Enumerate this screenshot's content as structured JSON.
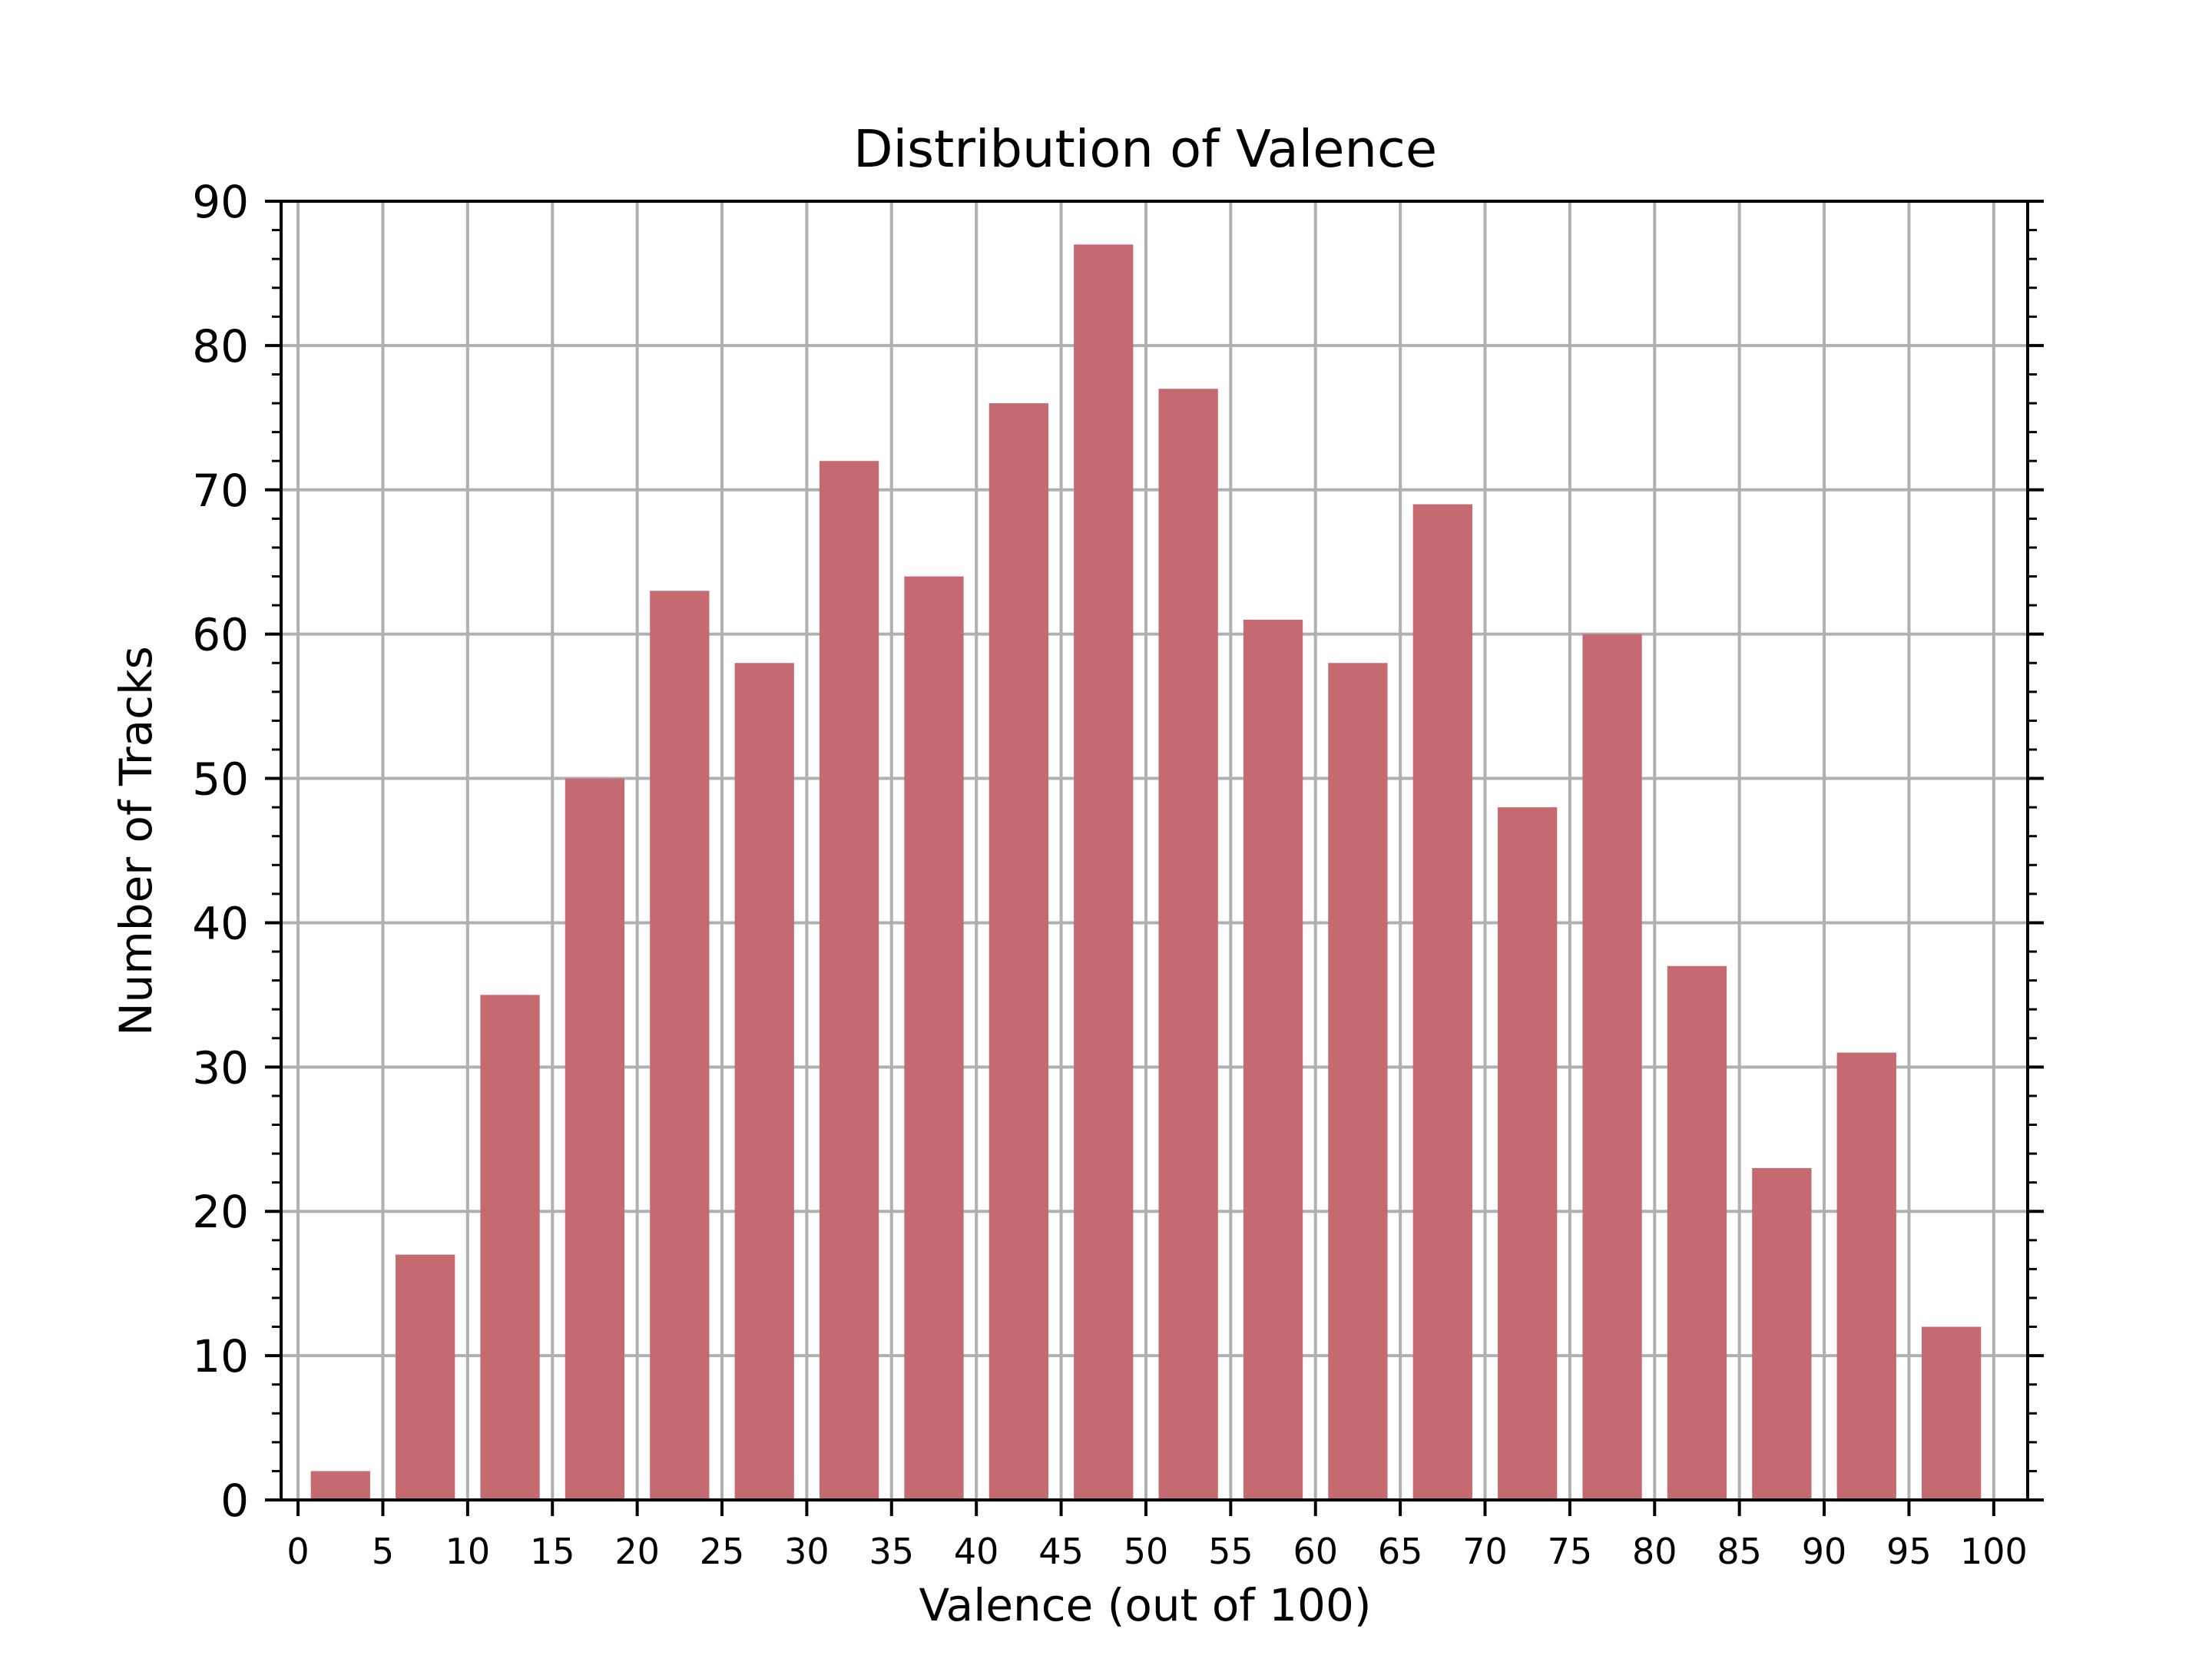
{
  "chart_data": {
    "type": "bar",
    "title": "Distribution of Valence",
    "xlabel": "Valence (out of 100)",
    "ylabel": "Number of Tracks",
    "bins": [
      {
        "start": 0,
        "end": 5,
        "value": 2
      },
      {
        "start": 5,
        "end": 10,
        "value": 17
      },
      {
        "start": 10,
        "end": 15,
        "value": 35
      },
      {
        "start": 15,
        "end": 20,
        "value": 50
      },
      {
        "start": 20,
        "end": 25,
        "value": 63
      },
      {
        "start": 25,
        "end": 30,
        "value": 58
      },
      {
        "start": 30,
        "end": 35,
        "value": 72
      },
      {
        "start": 35,
        "end": 40,
        "value": 64
      },
      {
        "start": 40,
        "end": 45,
        "value": 76
      },
      {
        "start": 45,
        "end": 50,
        "value": 87
      },
      {
        "start": 50,
        "end": 55,
        "value": 77
      },
      {
        "start": 55,
        "end": 60,
        "value": 61
      },
      {
        "start": 60,
        "end": 65,
        "value": 58
      },
      {
        "start": 65,
        "end": 70,
        "value": 69
      },
      {
        "start": 70,
        "end": 75,
        "value": 48
      },
      {
        "start": 75,
        "end": 80,
        "value": 60
      },
      {
        "start": 80,
        "end": 85,
        "value": 37
      },
      {
        "start": 85,
        "end": 90,
        "value": 23
      },
      {
        "start": 90,
        "end": 95,
        "value": 31
      },
      {
        "start": 95,
        "end": 100,
        "value": 12
      }
    ],
    "xticks": [
      "0",
      "5",
      "10",
      "15",
      "20",
      "25",
      "30",
      "35",
      "40",
      "45",
      "50",
      "55",
      "60",
      "65",
      "70",
      "75",
      "80",
      "85",
      "90",
      "95",
      "100"
    ],
    "yticks": [
      "0",
      "10",
      "20",
      "30",
      "40",
      "50",
      "60",
      "70",
      "80",
      "90"
    ],
    "xlim": [
      -1,
      102
    ],
    "ylim": [
      0,
      90
    ],
    "grid": true,
    "colors": {
      "bar": "#c56a71",
      "grid": "#b0b0b0",
      "axis": "#000000"
    }
  }
}
